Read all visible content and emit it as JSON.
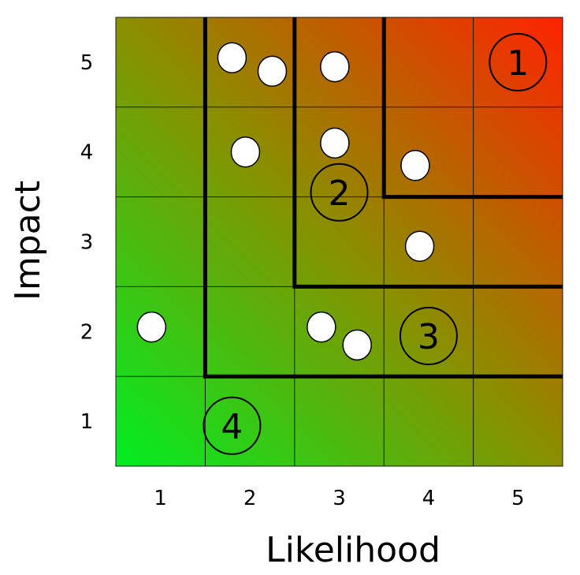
{
  "axes": {
    "x_title": "Likelihood",
    "y_title": "Impact",
    "x_ticks": [
      "1",
      "2",
      "3",
      "4",
      "5"
    ],
    "y_ticks": [
      "1",
      "2",
      "3",
      "4",
      "5"
    ]
  },
  "gradient": {
    "low_color": "#00ee22",
    "high_color": "#ff2200",
    "mid_color": "#8a8f00"
  },
  "zones": [
    {
      "label": "1",
      "x": 5.0,
      "y": 5.0
    },
    {
      "label": "2",
      "x": 3.0,
      "y": 3.55
    },
    {
      "label": "3",
      "x": 4.0,
      "y": 1.95
    },
    {
      "label": "4",
      "x": 1.8,
      "y": 0.95
    }
  ],
  "zone_boundaries": [
    {
      "from_likelihood": 3.5,
      "from_impact": 3.5
    },
    {
      "from_likelihood": 2.5,
      "from_impact": 2.5
    },
    {
      "from_likelihood": 1.5,
      "from_impact": 1.5
    }
  ],
  "risks": [
    {
      "x": 1.8,
      "y": 5.05
    },
    {
      "x": 2.25,
      "y": 4.9
    },
    {
      "x": 2.95,
      "y": 4.95
    },
    {
      "x": 1.95,
      "y": 4.0
    },
    {
      "x": 2.95,
      "y": 4.1
    },
    {
      "x": 3.85,
      "y": 3.85
    },
    {
      "x": 3.9,
      "y": 2.95
    },
    {
      "x": 0.9,
      "y": 2.05
    },
    {
      "x": 2.8,
      "y": 2.05
    },
    {
      "x": 3.2,
      "y": 1.85
    }
  ]
}
